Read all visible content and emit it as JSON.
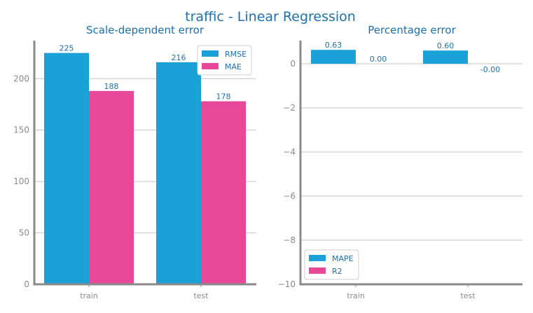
{
  "figure": {
    "title": "traffic - Linear Regression"
  },
  "colors": {
    "title": "#1f6fa8",
    "series_blue": "#1aa1d8",
    "series_pink": "#e9489a",
    "axis": "#8a8a8a",
    "grid": "#cccccc",
    "tick_text": "#8a8a8a",
    "label_text": "#1f6fa8"
  },
  "chart_data": [
    {
      "type": "bar",
      "title": "Scale-dependent error",
      "categories": [
        "train",
        "test"
      ],
      "series": [
        {
          "name": "RMSE",
          "values": [
            225,
            216
          ],
          "labels": [
            "225",
            "216"
          ]
        },
        {
          "name": "MAE",
          "values": [
            188,
            178
          ],
          "labels": [
            "188",
            "178"
          ]
        }
      ],
      "ylim": [
        0,
        237
      ],
      "yticks": [
        0,
        50,
        100,
        150,
        200
      ],
      "ytick_labels": [
        "0",
        "50",
        "100",
        "150",
        "200"
      ],
      "grid": true,
      "legend_position": "top-right"
    },
    {
      "type": "bar",
      "title": "Percentage error",
      "categories": [
        "train",
        "test"
      ],
      "series": [
        {
          "name": "MAPE",
          "values": [
            0.63,
            0.6
          ],
          "labels": [
            "0.63",
            "0.60"
          ]
        },
        {
          "name": "R2",
          "values": [
            0.0,
            -0.0
          ],
          "labels": [
            "0.00",
            "-0.00"
          ]
        }
      ],
      "ylim": [
        -10,
        1.05
      ],
      "yticks": [
        0,
        -2,
        -4,
        -6,
        -8,
        -10
      ],
      "ytick_labels": [
        "0",
        "−2",
        "−4",
        "−6",
        "−8",
        "−10"
      ],
      "grid": true,
      "legend_position": "bottom-left"
    }
  ]
}
